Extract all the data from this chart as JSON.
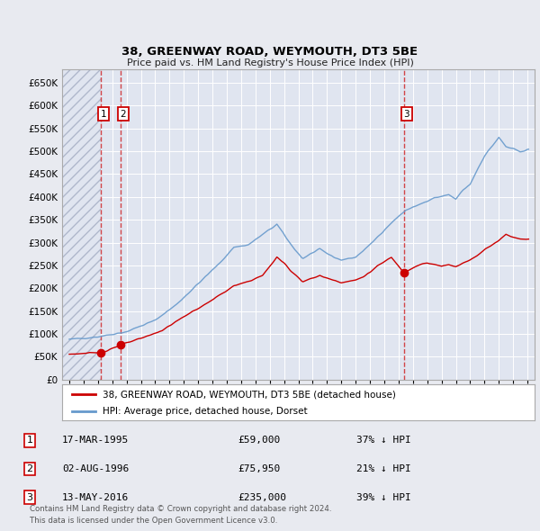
{
  "title": "38, GREENWAY ROAD, WEYMOUTH, DT3 5BE",
  "subtitle": "Price paid vs. HM Land Registry's House Price Index (HPI)",
  "ylim": [
    0,
    680000
  ],
  "yticks": [
    0,
    50000,
    100000,
    150000,
    200000,
    250000,
    300000,
    350000,
    400000,
    450000,
    500000,
    550000,
    600000,
    650000
  ],
  "xlim_start": 1992.5,
  "xlim_end": 2025.5,
  "bg_color": "#e8eaf0",
  "plot_bg": "#e0e5f0",
  "grid_color": "#ffffff",
  "sale_dates": [
    1995.21,
    1996.59,
    2016.37
  ],
  "sale_prices": [
    59000,
    75950,
    235000
  ],
  "sale_labels": [
    "1",
    "2",
    "3"
  ],
  "sale_color": "#cc0000",
  "hpi_line_color": "#6699cc",
  "legend_label_red": "38, GREENWAY ROAD, WEYMOUTH, DT3 5BE (detached house)",
  "legend_label_blue": "HPI: Average price, detached house, Dorset",
  "table_rows": [
    [
      "1",
      "17-MAR-1995",
      "£59,000",
      "37% ↓ HPI"
    ],
    [
      "2",
      "02-AUG-1996",
      "£75,950",
      "21% ↓ HPI"
    ],
    [
      "3",
      "13-MAY-2016",
      "£235,000",
      "39% ↓ HPI"
    ]
  ],
  "footnote": "Contains HM Land Registry data © Crown copyright and database right 2024.\nThis data is licensed under the Open Government Licence v3.0.",
  "xticks": [
    1993,
    1994,
    1995,
    1996,
    1997,
    1998,
    1999,
    2000,
    2001,
    2002,
    2003,
    2004,
    2005,
    2006,
    2007,
    2008,
    2009,
    2010,
    2011,
    2012,
    2013,
    2014,
    2015,
    2016,
    2017,
    2018,
    2019,
    2020,
    2021,
    2022,
    2023,
    2024,
    2025
  ]
}
